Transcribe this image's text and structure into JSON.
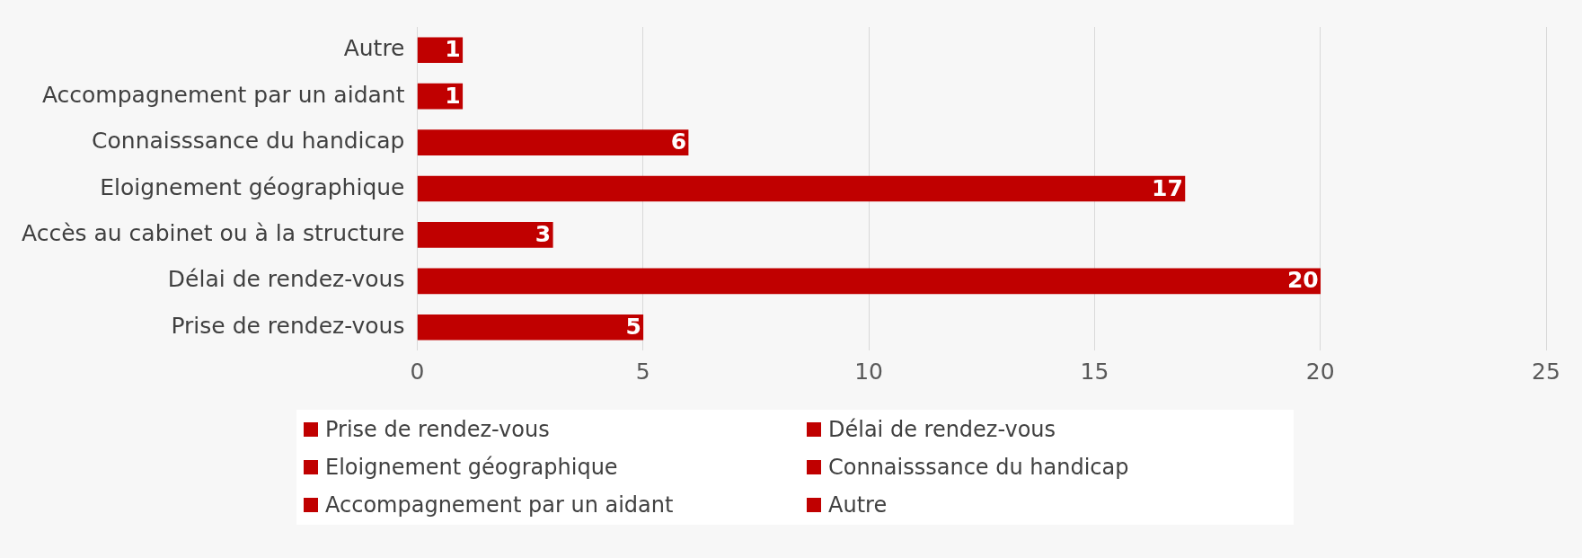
{
  "chart_data": {
    "type": "bar",
    "orientation": "horizontal",
    "stacked": true,
    "categories": [
      "Autre",
      "Accompagnement par un aidant",
      "Connaisssance du handicap",
      "Eloignement géographique",
      "Accès au cabinet ou à la structure",
      "Délai de rendez-vous",
      "Prise de rendez-vous"
    ],
    "series": [
      {
        "name": "Prise de rendez-vous",
        "color": "#c00000",
        "values": [
          null,
          null,
          null,
          null,
          null,
          null,
          5
        ]
      },
      {
        "name": "Délai de rendez-vous",
        "color": "#c00000",
        "values": [
          null,
          null,
          null,
          null,
          null,
          20,
          null
        ]
      },
      {
        "color": "#c00000",
        "values": [
          null,
          null,
          null,
          null,
          3,
          null,
          null
        ]
      },
      {
        "name": "Eloignement géographique",
        "color": "#c00000",
        "values": [
          null,
          null,
          null,
          17,
          null,
          null,
          null
        ]
      },
      {
        "name": "Connaisssance du handicap",
        "color": "#c00000",
        "values": [
          null,
          null,
          6,
          null,
          null,
          null,
          null
        ]
      },
      {
        "name": "Accompagnement par un aidant",
        "color": "#c00000",
        "values": [
          null,
          1,
          null,
          null,
          null,
          null,
          null
        ]
      },
      {
        "name": "Autre",
        "color": "#c00000",
        "values": [
          1,
          null,
          null,
          null,
          null,
          null,
          null
        ]
      }
    ],
    "xlim": [
      0,
      25
    ],
    "xticks": [
      0,
      5,
      10,
      15,
      20,
      25
    ],
    "grid": "x",
    "legend": "bottom",
    "data_labels": true
  }
}
